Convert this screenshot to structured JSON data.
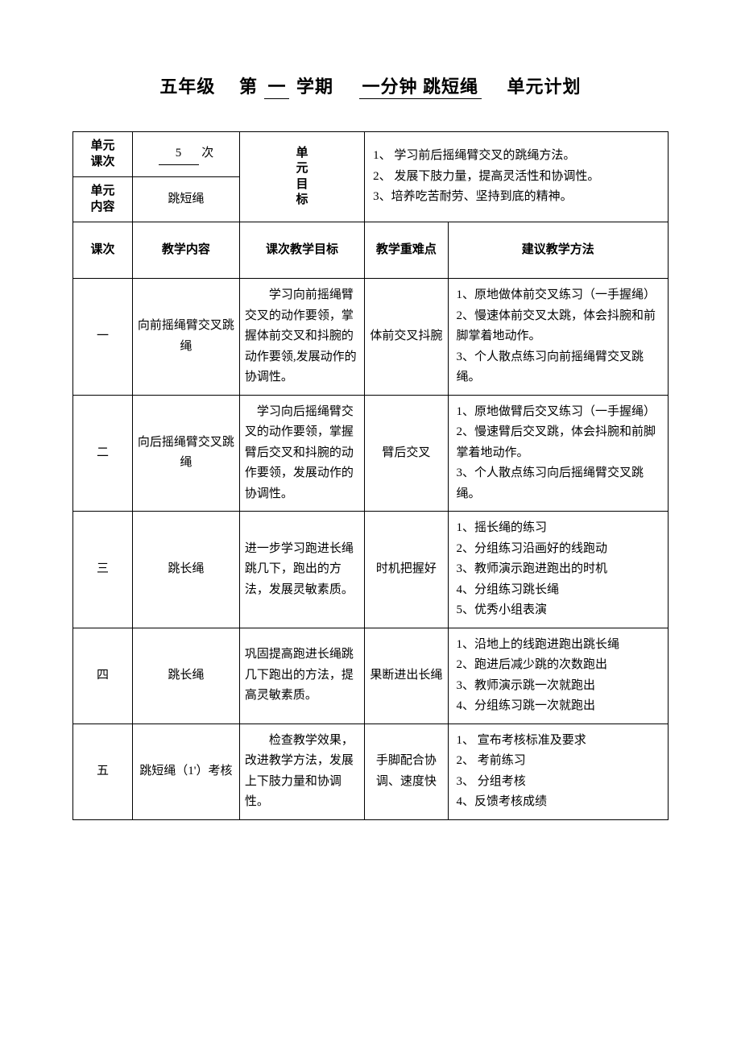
{
  "title": {
    "grade": "五年级",
    "semester_prefix": "第",
    "semester": "一",
    "semester_suffix": "学期",
    "topic": "一分钟 跳短绳",
    "suffix": "单元计划"
  },
  "header": {
    "unit_times_label": "单元\n课次",
    "unit_times_value": "5",
    "unit_times_unit": "次",
    "unit_content_label": "单元\n内容",
    "unit_content_value": "跳短绳",
    "unit_goal_label": "单\n元\n目\n标",
    "unit_goal_text": "1、 学习前后摇绳臂交叉的跳绳方法。\n2、 发展下肢力量，提高灵活性和协调性。\n3、培养吃苦耐劳、坚持到底的精神。"
  },
  "columns": {
    "lesson_no": "课次",
    "content": "教学内容",
    "goal": "课次教学目标",
    "key": "教学重难点",
    "method": "建议教学方法"
  },
  "rows": [
    {
      "no": "一",
      "content": "向前摇绳臂交叉跳绳",
      "goal": "　　学习向前摇绳臂交叉的动作要领，掌握体前交叉和抖腕的动作要领,发展动作的协调性。",
      "key": "体前交叉抖腕",
      "method": "1、原地做体前交叉练习（一手握绳）\n2、慢速体前交叉太跳，体会抖腕和前脚掌着地动作。\n3、个人散点练习向前摇绳臂交叉跳绳。"
    },
    {
      "no": "二",
      "content": "向后摇绳臂交叉跳绳",
      "goal": "　学习向后摇绳臂交叉的动作要领，掌握臂后交叉和抖腕的动作要领，发展动作的协调性。",
      "key": "臂后交叉",
      "method": "1、原地做臂后交叉练习（一手握绳）\n2、慢速臂后交叉跳，体会抖腕和前脚掌着地动作。\n3、个人散点练习向后摇绳臂交叉跳绳。"
    },
    {
      "no": "三",
      "content": "跳长绳",
      "goal": "进一步学习跑进长绳跳几下，跑出的方法，发展灵敏素质。",
      "key": "时机把握好",
      "method": "1、摇长绳的练习\n2、分组练习沿画好的线跑动\n3、教师演示跑进跑出的时机\n4、分组练习跳长绳\n5、优秀小组表演"
    },
    {
      "no": "四",
      "content": "跳长绳",
      "goal": "巩固提高跑进长绳跳几下跑出的方法，提高灵敏素质。",
      "key": "果断进出长绳",
      "method": "1、沿地上的线跑进跑出跳长绳\n2、跑进后减少跳的次数跑出\n3、教师演示跳一次就跑出\n4、分组练习跳一次就跑出"
    },
    {
      "no": "五",
      "content": "跳短绳（1'）考核",
      "goal": "　　检查教学效果，改进教学方法，发展上下肢力量和协调性。",
      "key": "手脚配合协调、速度快",
      "method": "1、 宣布考核标准及要求\n2、 考前练习\n3、 分组考核\n4、反馈考核成绩"
    }
  ],
  "style": {
    "text_color": "#000000",
    "background_color": "#ffffff",
    "border_color": "#000000",
    "title_fontsize": 22,
    "body_fontsize": 15,
    "col_widths_pct": [
      10,
      18,
      21,
      14,
      37
    ]
  }
}
